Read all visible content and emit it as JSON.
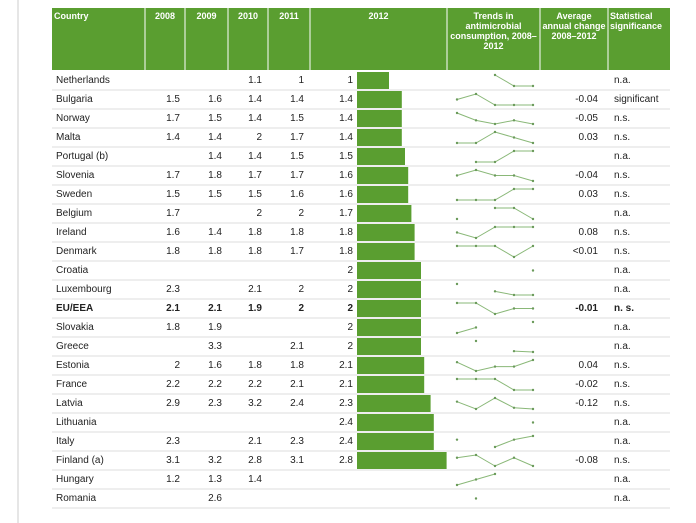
{
  "table": {
    "header": [
      "Country",
      "2008",
      "2009",
      "2010",
      "2011",
      "2012",
      "Trends in antimicrobial consumption, 2008–2012",
      "Average annual change 2008–2012",
      "Statistical significance"
    ],
    "rows": [
      [
        "Netherlands",
        null,
        null,
        1.1,
        1.0,
        1.0,
        null,
        "n.a."
      ],
      [
        "Bulgaria",
        1.5,
        1.6,
        1.4,
        1.4,
        1.4,
        "-0.04",
        "significant"
      ],
      [
        "Norway",
        1.7,
        1.5,
        1.4,
        1.5,
        1.4,
        "-0.05",
        "n.s."
      ],
      [
        "Malta",
        1.4,
        1.4,
        2.0,
        1.7,
        1.4,
        "0.03",
        "n.s."
      ],
      [
        "Portugal (b)",
        null,
        1.4,
        1.4,
        1.5,
        1.5,
        null,
        "n.a."
      ],
      [
        "Slovenia",
        1.7,
        1.8,
        1.7,
        1.7,
        1.6,
        "-0.04",
        "n.s."
      ],
      [
        "Sweden",
        1.5,
        1.5,
        1.5,
        1.6,
        1.6,
        "0.03",
        "n.s."
      ],
      [
        "Belgium",
        1.7,
        null,
        2.0,
        2.0,
        1.7,
        null,
        "n.a."
      ],
      [
        "Ireland",
        1.6,
        1.4,
        1.8,
        1.8,
        1.8,
        "0.08",
        "n.s."
      ],
      [
        "Denmark",
        1.8,
        1.8,
        1.8,
        1.7,
        1.8,
        "<0.01",
        "n.s."
      ],
      [
        "Croatia",
        null,
        null,
        null,
        null,
        2.0,
        null,
        "n.a."
      ],
      [
        "Luxembourg",
        2.3,
        null,
        2.1,
        2.0,
        2.0,
        null,
        "n.a."
      ],
      [
        "EU/EEA",
        2.1,
        2.1,
        1.9,
        2.0,
        2.0,
        "-0.01",
        "n. s."
      ],
      [
        "Slovakia",
        1.8,
        1.9,
        null,
        null,
        2.0,
        null,
        "n.a."
      ],
      [
        "Greece",
        null,
        3.3,
        null,
        2.1,
        2.0,
        null,
        "n.a."
      ],
      [
        "Estonia",
        2.0,
        1.6,
        1.8,
        1.8,
        2.1,
        "0.04",
        "n.s."
      ],
      [
        "France",
        2.2,
        2.2,
        2.2,
        2.1,
        2.1,
        "-0.02",
        "n.s."
      ],
      [
        "Latvia",
        2.9,
        2.3,
        3.2,
        2.4,
        2.3,
        "-0.12",
        "n.s."
      ],
      [
        "Lithuania",
        null,
        null,
        null,
        null,
        2.4,
        null,
        "n.a."
      ],
      [
        "Italy",
        2.3,
        null,
        2.1,
        2.3,
        2.4,
        null,
        "n.a."
      ],
      [
        "Finland (a)",
        3.1,
        3.2,
        2.8,
        3.1,
        2.8,
        "-0.08",
        "n.s."
      ],
      [
        "Hungary",
        1.2,
        1.3,
        1.4,
        null,
        null,
        null,
        "n.a."
      ],
      [
        "Romania",
        null,
        2.6,
        null,
        null,
        null,
        null,
        "n.a."
      ]
    ]
  }
}
